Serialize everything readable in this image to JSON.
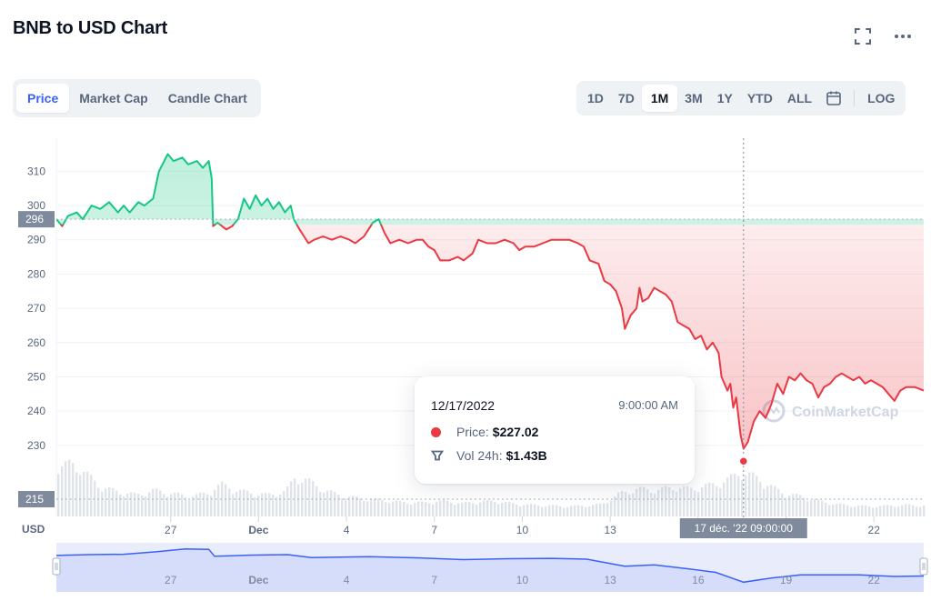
{
  "page": {
    "title": "BNB to USD Chart"
  },
  "tabs": [
    {
      "label": "Price",
      "active": true
    },
    {
      "label": "Market Cap",
      "active": false
    },
    {
      "label": "Candle Chart",
      "active": false
    }
  ],
  "ranges": [
    {
      "label": "1D",
      "active": false
    },
    {
      "label": "7D",
      "active": false
    },
    {
      "label": "1M",
      "active": true
    },
    {
      "label": "3M",
      "active": false
    },
    {
      "label": "1Y",
      "active": false
    },
    {
      "label": "YTD",
      "active": false
    },
    {
      "label": "ALL",
      "active": false
    }
  ],
  "log_label": "LOG",
  "icons": {
    "fullscreen": "fullscreen-icon",
    "more": "more-icon",
    "calendar": "calendar-icon",
    "volume": "volume-icon"
  },
  "tooltip": {
    "date": "12/17/2022",
    "time": "9:00:00 AM",
    "price_label": "Price:",
    "price_value": "$227.02",
    "vol_label": "Vol 24h:",
    "vol_value": "$1.43B"
  },
  "crosshair_label": "17 déc. '22  09:00:00",
  "watermark": "CoinMarketCap",
  "colors": {
    "up": "#16c784",
    "down": "#ea3943",
    "accent": "#3861fb",
    "text": "#0d1421",
    "muted": "#58667e"
  },
  "chart_data": {
    "type": "area",
    "yunit": "USD",
    "reference_price": 296,
    "reference_volume_label": "215",
    "y_ticks": [
      230,
      240,
      250,
      260,
      270,
      280,
      290,
      300,
      310
    ],
    "ylim": [
      222,
      317
    ],
    "x_ticks": [
      {
        "x": 27,
        "label": "27"
      },
      {
        "x": 30,
        "label": "Dec"
      },
      {
        "x": 33,
        "label": "4"
      },
      {
        "x": 36,
        "label": "7"
      },
      {
        "x": 39,
        "label": "10"
      },
      {
        "x": 42,
        "label": "13"
      },
      {
        "x": 45,
        "label": "16"
      },
      {
        "x": 48,
        "label": "19"
      },
      {
        "x": 51,
        "label": "22"
      }
    ],
    "xlim": [
      23.1,
      52.7
    ],
    "nav_labels": [
      "27",
      "Dec",
      "4",
      "7",
      "10",
      "13",
      "16",
      "19",
      "22"
    ],
    "crosshair_x": 46.55,
    "series": [
      {
        "points": [
          [
            23.1,
            296
          ],
          [
            23.3,
            294
          ],
          [
            23.5,
            297
          ],
          [
            23.8,
            298
          ],
          [
            24.0,
            296
          ],
          [
            24.3,
            300
          ],
          [
            24.6,
            299
          ],
          [
            24.9,
            301
          ],
          [
            25.2,
            298
          ],
          [
            25.4,
            300
          ],
          [
            25.6,
            298
          ],
          [
            25.9,
            301
          ],
          [
            26.1,
            300
          ],
          [
            26.4,
            302
          ],
          [
            26.6,
            310
          ],
          [
            26.9,
            315
          ],
          [
            27.1,
            313
          ],
          [
            27.4,
            314
          ],
          [
            27.6,
            312
          ],
          [
            27.9,
            313
          ],
          [
            28.1,
            311
          ],
          [
            28.3,
            313
          ],
          [
            28.4,
            308
          ],
          [
            28.45,
            294
          ],
          [
            28.6,
            295
          ],
          [
            28.9,
            293
          ],
          [
            29.1,
            294
          ],
          [
            29.3,
            296
          ],
          [
            29.5,
            302
          ],
          [
            29.7,
            299
          ],
          [
            29.9,
            303
          ],
          [
            30.1,
            300
          ],
          [
            30.3,
            302
          ],
          [
            30.5,
            299
          ],
          [
            30.7,
            301
          ],
          [
            30.9,
            298
          ],
          [
            31.1,
            300
          ],
          [
            31.2,
            296
          ],
          [
            31.4,
            293
          ],
          [
            31.7,
            289
          ],
          [
            31.9,
            290
          ],
          [
            32.2,
            291
          ],
          [
            32.5,
            290
          ],
          [
            32.8,
            291
          ],
          [
            33.1,
            290
          ],
          [
            33.3,
            289
          ],
          [
            33.6,
            291
          ],
          [
            33.9,
            295
          ],
          [
            34.1,
            296
          ],
          [
            34.3,
            292
          ],
          [
            34.5,
            289
          ],
          [
            34.8,
            290
          ],
          [
            35.1,
            289
          ],
          [
            35.4,
            290
          ],
          [
            35.6,
            290
          ],
          [
            35.8,
            288
          ],
          [
            36.0,
            287
          ],
          [
            36.2,
            284
          ],
          [
            36.5,
            284
          ],
          [
            36.8,
            285
          ],
          [
            37.0,
            284
          ],
          [
            37.3,
            286
          ],
          [
            37.5,
            290
          ],
          [
            37.8,
            289
          ],
          [
            38.1,
            289
          ],
          [
            38.4,
            290
          ],
          [
            38.7,
            289
          ],
          [
            38.9,
            287
          ],
          [
            39.1,
            288
          ],
          [
            39.4,
            288
          ],
          [
            39.7,
            289
          ],
          [
            40.0,
            290
          ],
          [
            40.3,
            290
          ],
          [
            40.6,
            290
          ],
          [
            40.9,
            289
          ],
          [
            41.1,
            288
          ],
          [
            41.3,
            284
          ],
          [
            41.6,
            283
          ],
          [
            41.8,
            278
          ],
          [
            42.0,
            277
          ],
          [
            42.2,
            275
          ],
          [
            42.4,
            270
          ],
          [
            42.5,
            264
          ],
          [
            42.7,
            268
          ],
          [
            42.9,
            270
          ],
          [
            43.0,
            276
          ],
          [
            43.1,
            272
          ],
          [
            43.3,
            273
          ],
          [
            43.5,
            276
          ],
          [
            43.7,
            275
          ],
          [
            43.9,
            274
          ],
          [
            44.1,
            272
          ],
          [
            44.3,
            266
          ],
          [
            44.5,
            265
          ],
          [
            44.7,
            264
          ],
          [
            44.9,
            261
          ],
          [
            45.1,
            262
          ],
          [
            45.3,
            258
          ],
          [
            45.5,
            260
          ],
          [
            45.7,
            257
          ],
          [
            45.8,
            250
          ],
          [
            46.0,
            246
          ],
          [
            46.1,
            248
          ],
          [
            46.2,
            241
          ],
          [
            46.3,
            244
          ],
          [
            46.45,
            233
          ],
          [
            46.55,
            229
          ],
          [
            46.7,
            231
          ],
          [
            46.8,
            234
          ],
          [
            46.9,
            237
          ],
          [
            47.1,
            240
          ],
          [
            47.3,
            238
          ],
          [
            47.5,
            242
          ],
          [
            47.7,
            248
          ],
          [
            47.9,
            245
          ],
          [
            48.1,
            250
          ],
          [
            48.3,
            249
          ],
          [
            48.5,
            251
          ],
          [
            48.7,
            249
          ],
          [
            48.9,
            248
          ],
          [
            49.1,
            244
          ],
          [
            49.3,
            247
          ],
          [
            49.5,
            248
          ],
          [
            49.7,
            250
          ],
          [
            49.9,
            251
          ],
          [
            50.1,
            250
          ],
          [
            50.3,
            249
          ],
          [
            50.5,
            250
          ],
          [
            50.7,
            248
          ],
          [
            50.9,
            249
          ],
          [
            51.1,
            248
          ],
          [
            51.3,
            247
          ],
          [
            51.5,
            245
          ],
          [
            51.7,
            243
          ],
          [
            51.9,
            246
          ],
          [
            52.1,
            247
          ],
          [
            52.4,
            247
          ],
          [
            52.7,
            246
          ]
        ]
      }
    ],
    "navigator_levels": [
      [
        23.1,
        296
      ],
      [
        24.2,
        298
      ],
      [
        25.4,
        299
      ],
      [
        26.5,
        305
      ],
      [
        27.5,
        312
      ],
      [
        28.3,
        311
      ],
      [
        28.5,
        294
      ],
      [
        29.8,
        297
      ],
      [
        31.0,
        298
      ],
      [
        31.8,
        291
      ],
      [
        33.8,
        293
      ],
      [
        35.5,
        290
      ],
      [
        37.0,
        286
      ],
      [
        38.5,
        288
      ],
      [
        40.0,
        289
      ],
      [
        41.2,
        287
      ],
      [
        42.5,
        270
      ],
      [
        43.5,
        273
      ],
      [
        44.6,
        264
      ],
      [
        45.6,
        255
      ],
      [
        46.55,
        231
      ],
      [
        47.5,
        241
      ],
      [
        48.5,
        249
      ],
      [
        49.5,
        249
      ],
      [
        50.5,
        249
      ],
      [
        51.7,
        245
      ],
      [
        52.7,
        246
      ]
    ],
    "volume_levels": [
      [
        23.1,
        0.62
      ],
      [
        23.6,
        0.7
      ],
      [
        24.1,
        0.55
      ],
      [
        24.6,
        0.38
      ],
      [
        25.2,
        0.32
      ],
      [
        25.8,
        0.28
      ],
      [
        26.4,
        0.34
      ],
      [
        27.0,
        0.3
      ],
      [
        27.6,
        0.26
      ],
      [
        28.2,
        0.3
      ],
      [
        28.7,
        0.42
      ],
      [
        29.2,
        0.34
      ],
      [
        29.8,
        0.3
      ],
      [
        30.3,
        0.28
      ],
      [
        30.9,
        0.33
      ],
      [
        31.2,
        0.5
      ],
      [
        31.6,
        0.48
      ],
      [
        32.1,
        0.36
      ],
      [
        32.7,
        0.28
      ],
      [
        33.3,
        0.24
      ],
      [
        33.9,
        0.22
      ],
      [
        34.5,
        0.2
      ],
      [
        35.1,
        0.18
      ],
      [
        35.7,
        0.18
      ],
      [
        36.3,
        0.2
      ],
      [
        36.9,
        0.17
      ],
      [
        37.5,
        0.19
      ],
      [
        38.1,
        0.2
      ],
      [
        38.7,
        0.16
      ],
      [
        39.3,
        0.15
      ],
      [
        39.9,
        0.14
      ],
      [
        40.5,
        0.13
      ],
      [
        41.1,
        0.14
      ],
      [
        41.7,
        0.16
      ],
      [
        42.3,
        0.3
      ],
      [
        42.9,
        0.36
      ],
      [
        43.5,
        0.34
      ],
      [
        44.1,
        0.38
      ],
      [
        44.7,
        0.36
      ],
      [
        45.3,
        0.4
      ],
      [
        45.9,
        0.46
      ],
      [
        46.4,
        0.58
      ],
      [
        46.9,
        0.52
      ],
      [
        47.4,
        0.4
      ],
      [
        47.9,
        0.3
      ],
      [
        48.5,
        0.26
      ],
      [
        49.1,
        0.2
      ],
      [
        49.7,
        0.16
      ],
      [
        50.3,
        0.14
      ],
      [
        50.9,
        0.13
      ],
      [
        51.5,
        0.14
      ],
      [
        52.1,
        0.15
      ],
      [
        52.7,
        0.14
      ]
    ]
  }
}
